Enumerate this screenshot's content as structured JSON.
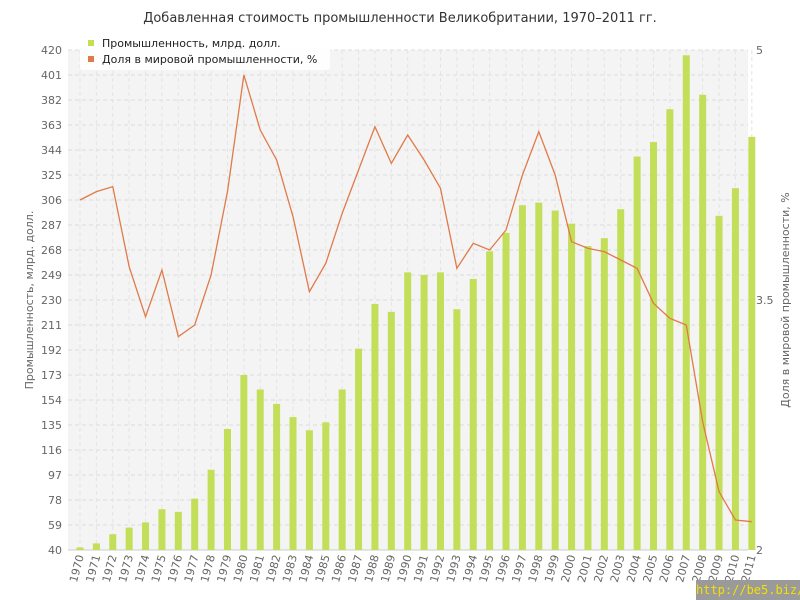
{
  "chart_data": {
    "type": "bar+line",
    "title": "Добавленная стоимость промышленности Великобритании, 1970–2011 гг.",
    "ylabel_left": "Промышленность, млрд. долл.",
    "ylabel_right": "Доля в мировой промышленности, %",
    "ylim_left": [
      40,
      420
    ],
    "yticks_left": [
      "40",
      "59",
      "78",
      "97",
      "116",
      "135",
      "154",
      "173",
      "192",
      "211",
      "230",
      "249",
      "268",
      "287",
      "306",
      "325",
      "344",
      "363",
      "382",
      "401",
      "420"
    ],
    "ylim_right": [
      2,
      5
    ],
    "yticks_right": [
      "2",
      "3.5",
      "5"
    ],
    "grid": true,
    "legend_position": "top-left",
    "categories": [
      "1970",
      "1971",
      "1972",
      "1973",
      "1974",
      "1975",
      "1976",
      "1977",
      "1978",
      "1979",
      "1980",
      "1981",
      "1982",
      "1983",
      "1984",
      "1985",
      "1986",
      "1987",
      "1988",
      "1989",
      "1990",
      "1991",
      "1992",
      "1993",
      "1994",
      "1995",
      "1996",
      "1997",
      "1998",
      "1999",
      "2000",
      "2001",
      "2002",
      "2003",
      "2004",
      "2005",
      "2006",
      "2007",
      "2008",
      "2009",
      "2010",
      "2011"
    ],
    "series": [
      {
        "name": "Промышленность, млрд. долл.",
        "type": "bar",
        "color": "#c3de58",
        "axis": "left",
        "values": [
          42,
          45,
          52,
          57,
          61,
          71,
          69,
          79,
          101,
          132,
          173,
          162,
          151,
          141,
          131,
          137,
          162,
          193,
          227,
          221,
          251,
          249,
          251,
          223,
          246,
          267,
          281,
          302,
          304,
          298,
          288,
          271,
          277,
          299,
          339,
          350,
          375,
          416,
          386,
          294,
          315,
          354
        ]
      },
      {
        "name": "Доля в мировой промышленности, %",
        "type": "line",
        "color": "#e07a4a",
        "axis": "right",
        "values": [
          4.1,
          4.15,
          4.18,
          3.7,
          3.4,
          3.68,
          3.28,
          3.35,
          3.65,
          4.15,
          4.85,
          4.52,
          4.34,
          4.0,
          3.55,
          3.72,
          4.02,
          4.28,
          4.54,
          4.32,
          4.49,
          4.34,
          4.17,
          3.69,
          3.84,
          3.8,
          3.92,
          4.25,
          4.51,
          4.25,
          3.85,
          3.81,
          3.79,
          3.74,
          3.69,
          3.48,
          3.39,
          3.35,
          2.77,
          2.35,
          2.18,
          2.17
        ]
      }
    ]
  },
  "watermark": "http://be5.biz/"
}
